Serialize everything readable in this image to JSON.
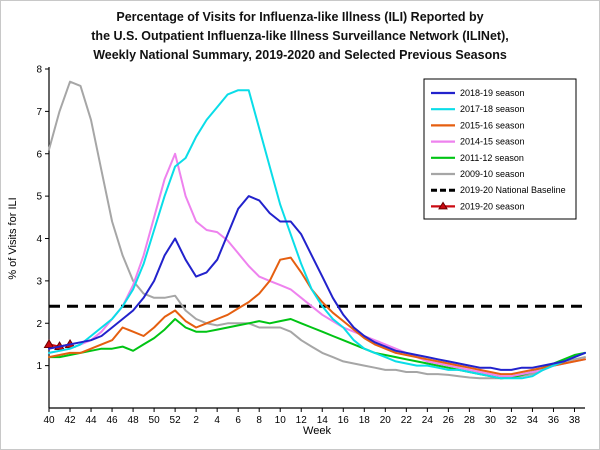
{
  "title": {
    "line1": "Percentage of Visits for Influenza-like Illness (ILI) Reported by",
    "line2": "the U.S. Outpatient Influenza-like Illness Surveillance Network (ILINet),",
    "line3": "Weekly National Summary, 2019-2020 and Selected Previous Seasons"
  },
  "chart_data": {
    "type": "line",
    "xlabel": "Week",
    "ylabel": "% of Visits for ILI",
    "ylim": [
      0,
      8
    ],
    "yticks": [
      1,
      2,
      3,
      4,
      5,
      6,
      7,
      8
    ],
    "grid": false,
    "legend_position": "top-right",
    "x_tick_step": 2,
    "weeks": [
      40,
      41,
      42,
      43,
      44,
      45,
      46,
      47,
      48,
      49,
      50,
      51,
      52,
      1,
      2,
      3,
      4,
      5,
      6,
      7,
      8,
      9,
      10,
      11,
      12,
      13,
      14,
      15,
      16,
      17,
      18,
      19,
      20,
      21,
      22,
      23,
      24,
      25,
      26,
      27,
      28,
      29,
      30,
      31,
      32,
      33,
      34,
      35,
      36,
      37,
      38,
      39
    ],
    "series": [
      {
        "name": "2018-19 season",
        "color": "#2222cc",
        "values": [
          1.4,
          1.45,
          1.5,
          1.55,
          1.6,
          1.7,
          1.9,
          2.1,
          2.3,
          2.6,
          3.0,
          3.6,
          4.0,
          3.5,
          3.1,
          3.2,
          3.5,
          4.1,
          4.7,
          5.0,
          4.9,
          4.6,
          4.4,
          4.4,
          4.1,
          3.6,
          3.1,
          2.6,
          2.2,
          1.9,
          1.7,
          1.55,
          1.45,
          1.35,
          1.3,
          1.25,
          1.2,
          1.15,
          1.1,
          1.05,
          1.0,
          0.95,
          0.95,
          0.9,
          0.9,
          0.95,
          0.95,
          1.0,
          1.05,
          1.1,
          1.2,
          1.3
        ]
      },
      {
        "name": "2017-18 season",
        "color": "#0adde8",
        "values": [
          1.3,
          1.35,
          1.4,
          1.5,
          1.7,
          1.9,
          2.1,
          2.4,
          2.8,
          3.4,
          4.2,
          5.0,
          5.7,
          5.9,
          6.4,
          6.8,
          7.1,
          7.4,
          7.5,
          7.5,
          6.6,
          5.7,
          4.8,
          4.1,
          3.4,
          2.8,
          2.4,
          2.1,
          1.9,
          1.6,
          1.4,
          1.3,
          1.2,
          1.1,
          1.05,
          1.0,
          1.0,
          0.95,
          0.9,
          0.9,
          0.85,
          0.8,
          0.75,
          0.7,
          0.7,
          0.7,
          0.75,
          0.9,
          1.0,
          1.1,
          1.2,
          1.3
        ]
      },
      {
        "name": "2015-16 season",
        "color": "#e55f10",
        "values": [
          1.2,
          1.25,
          1.3,
          1.3,
          1.4,
          1.5,
          1.6,
          1.9,
          1.8,
          1.7,
          1.9,
          2.15,
          2.3,
          2.05,
          1.9,
          2.0,
          2.1,
          2.2,
          2.35,
          2.5,
          2.7,
          3.0,
          3.5,
          3.55,
          3.2,
          2.8,
          2.5,
          2.25,
          2.05,
          1.85,
          1.65,
          1.5,
          1.4,
          1.3,
          1.25,
          1.2,
          1.15,
          1.1,
          1.05,
          1.0,
          0.95,
          0.9,
          0.85,
          0.8,
          0.8,
          0.85,
          0.9,
          0.95,
          1.0,
          1.05,
          1.1,
          1.15
        ]
      },
      {
        "name": "2014-15 season",
        "color": "#ee82ee",
        "values": [
          1.3,
          1.35,
          1.4,
          1.5,
          1.6,
          1.8,
          2.1,
          2.4,
          2.9,
          3.6,
          4.5,
          5.4,
          6.0,
          5.0,
          4.4,
          4.2,
          4.15,
          3.95,
          3.65,
          3.35,
          3.1,
          3.0,
          2.9,
          2.8,
          2.6,
          2.4,
          2.2,
          2.05,
          1.9,
          1.8,
          1.7,
          1.6,
          1.5,
          1.4,
          1.3,
          1.2,
          1.1,
          1.05,
          1.0,
          0.95,
          0.9,
          0.85,
          0.8,
          0.75,
          0.75,
          0.8,
          0.85,
          0.9,
          1.0,
          1.05,
          1.1,
          1.15
        ]
      },
      {
        "name": "2011-12 season",
        "color": "#00c414",
        "values": [
          1.2,
          1.2,
          1.25,
          1.3,
          1.35,
          1.4,
          1.4,
          1.45,
          1.35,
          1.5,
          1.65,
          1.85,
          2.1,
          1.9,
          1.8,
          1.8,
          1.85,
          1.9,
          1.95,
          2.0,
          2.05,
          2.0,
          2.05,
          2.1,
          2.0,
          1.9,
          1.8,
          1.7,
          1.6,
          1.5,
          1.4,
          1.3,
          1.25,
          1.2,
          1.15,
          1.1,
          1.05,
          1.0,
          0.95,
          0.9,
          0.85,
          0.8,
          0.75,
          0.7,
          0.72,
          0.78,
          0.85,
          0.95,
          1.05,
          1.15,
          1.25,
          1.3
        ]
      },
      {
        "name": "2009-10 season",
        "color": "#a6a6a6",
        "values": [
          6.1,
          7.0,
          7.7,
          7.6,
          6.8,
          5.6,
          4.4,
          3.6,
          3.0,
          2.7,
          2.6,
          2.6,
          2.65,
          2.3,
          2.1,
          2.0,
          1.95,
          2.0,
          2.0,
          2.0,
          1.9,
          1.9,
          1.9,
          1.8,
          1.6,
          1.45,
          1.3,
          1.2,
          1.1,
          1.05,
          1.0,
          0.95,
          0.9,
          0.9,
          0.85,
          0.85,
          0.8,
          0.8,
          0.78,
          0.75,
          0.72,
          0.7,
          0.7,
          0.7,
          0.72,
          0.75,
          0.8,
          0.9,
          1.0,
          1.1,
          1.15,
          1.2
        ]
      },
      {
        "name": "2019-20 National Baseline",
        "color": "#000000",
        "dash": true,
        "baseline_value": 2.4
      },
      {
        "name": "2019-20 season",
        "color": "#cc0a12",
        "marker": "triangle",
        "values": [
          1.5,
          1.45,
          1.5
        ]
      }
    ]
  }
}
